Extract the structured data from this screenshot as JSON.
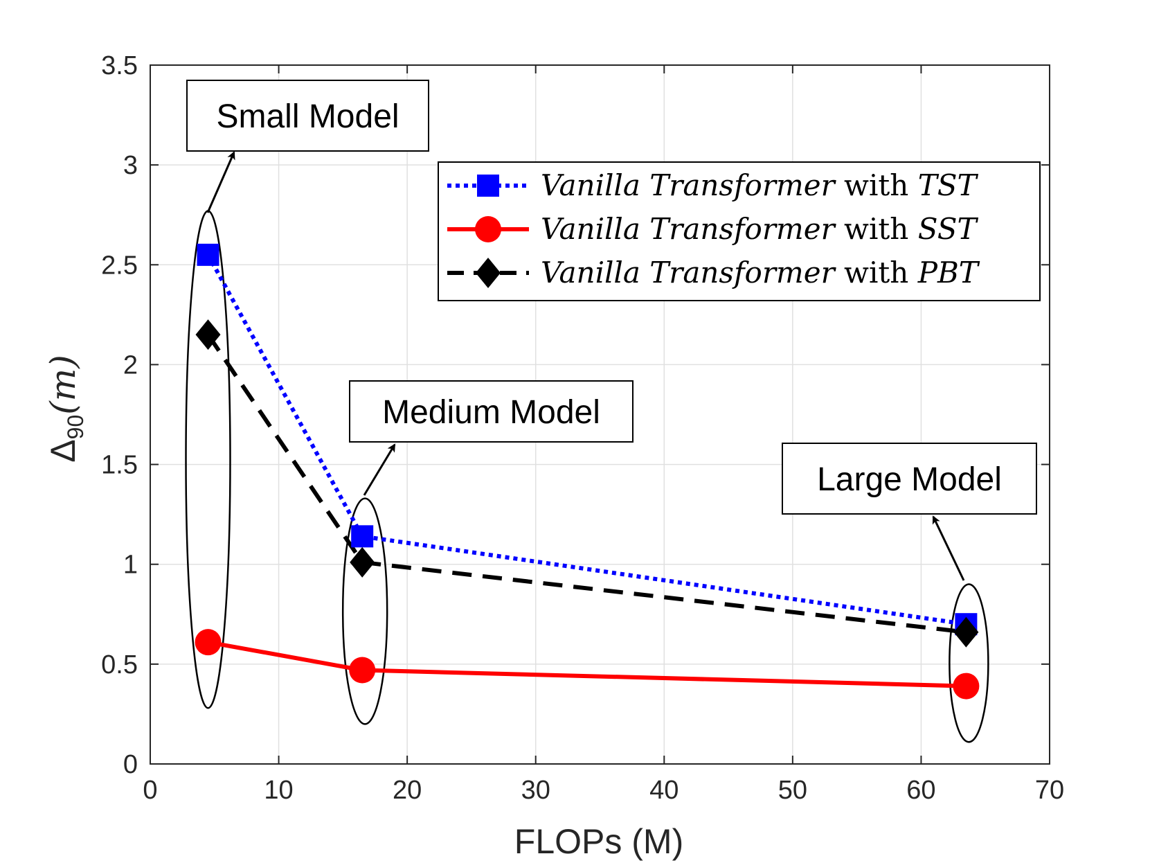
{
  "chart_data": {
    "type": "line",
    "title": "",
    "xlabel": "FLOPs (M)",
    "ylabel": "Δ90(m)",
    "ylabel_parts": {
      "symbol": "Δ",
      "subscript": "90",
      "unit": "(m)"
    },
    "xlim": [
      0,
      70
    ],
    "ylim": [
      0,
      3.5
    ],
    "xticks": [
      0,
      10,
      20,
      30,
      40,
      50,
      60,
      70
    ],
    "yticks": [
      0,
      0.5,
      1,
      1.5,
      2,
      2.5,
      3,
      3.5
    ],
    "xtick_labels": [
      "0",
      "10",
      "20",
      "30",
      "40",
      "50",
      "60",
      "70"
    ],
    "ytick_labels": [
      "0",
      "0.5",
      "1",
      "1.5",
      "2",
      "2.5",
      "3",
      "3.5"
    ],
    "grid": true,
    "legend_position": "top-right",
    "x": [
      4.5,
      16.5,
      63.5
    ],
    "series": [
      {
        "name": "Vanilla Transformer with TST",
        "name_italic": "Vanilla Transformer",
        "name_connector": "with",
        "name_suffix": "TST",
        "values": [
          2.55,
          1.14,
          0.7
        ],
        "color": "#0000FF",
        "line_style": "dotted",
        "marker": "square"
      },
      {
        "name": "Vanilla Transformer with SST",
        "name_italic": "Vanilla Transformer",
        "name_connector": "with",
        "name_suffix": "SST",
        "values": [
          0.61,
          0.47,
          0.39
        ],
        "color": "#FF0000",
        "line_style": "solid",
        "marker": "circle"
      },
      {
        "name": "Vanilla Transformer with PBT",
        "name_italic": "Vanilla Transformer",
        "name_connector": "with",
        "name_suffix": "PBT",
        "values": [
          2.15,
          1.01,
          0.66
        ],
        "color": "#000000",
        "line_style": "dashed",
        "marker": "diamond"
      }
    ],
    "annotations": [
      {
        "text": "Small Model",
        "target_x": 4.5,
        "target_y_range": [
          0.28,
          2.77
        ]
      },
      {
        "text": "Medium Model",
        "target_x": 16.5,
        "target_y_range": [
          0.2,
          1.33
        ]
      },
      {
        "text": "Large Model",
        "target_x": 63.5,
        "target_y_range": [
          0.11,
          0.9
        ]
      }
    ]
  }
}
